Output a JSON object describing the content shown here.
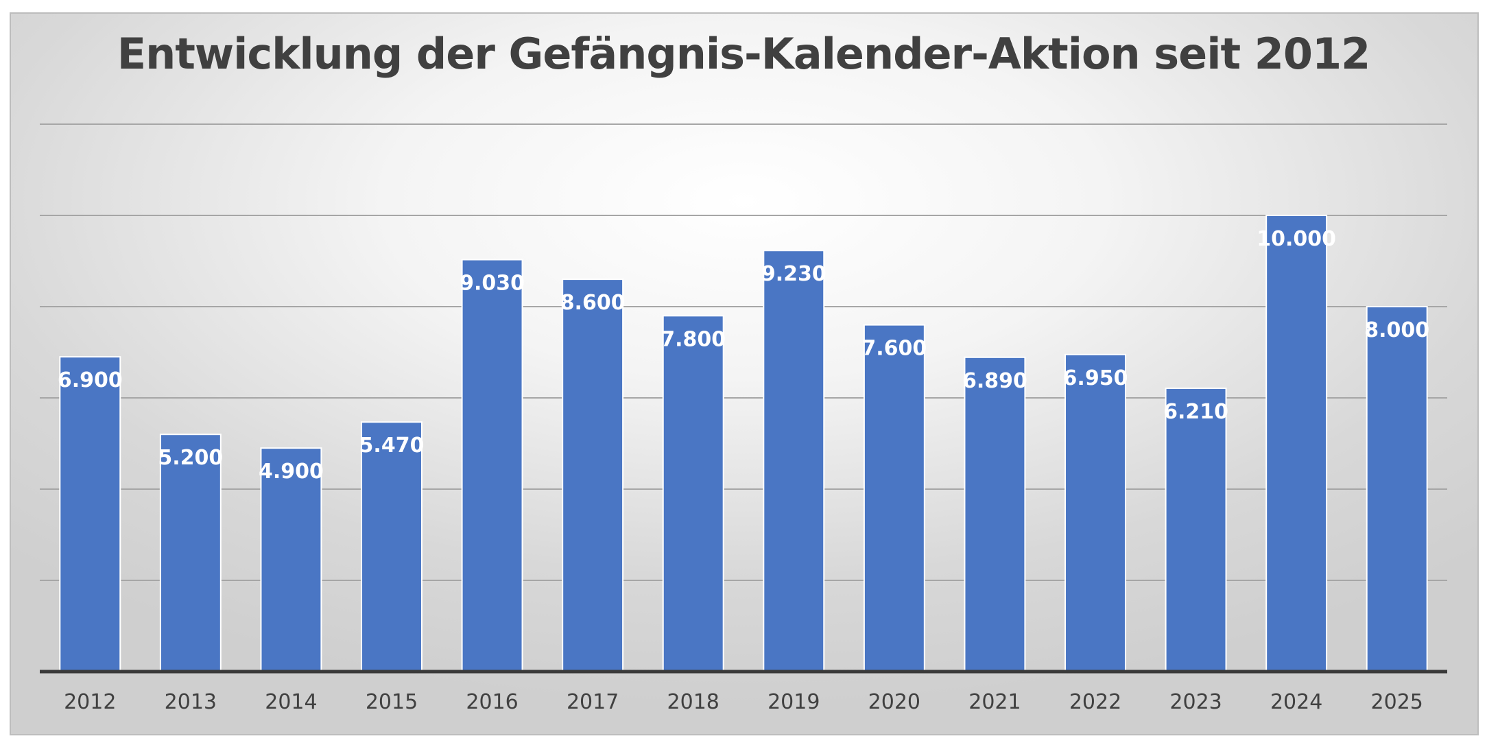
{
  "chart_data": {
    "type": "bar",
    "title": "Entwicklung der Gefängnis-Kalender-Aktion seit 2012",
    "categories": [
      "2012",
      "2013",
      "2014",
      "2015",
      "2016",
      "2017",
      "2018",
      "2019",
      "2020",
      "2021",
      "2022",
      "2023",
      "2024",
      "2025"
    ],
    "values": [
      6900,
      5200,
      4900,
      5470,
      9030,
      8600,
      7800,
      9230,
      7600,
      6890,
      6950,
      6210,
      10000,
      8000
    ],
    "value_labels": [
      "6.900",
      "5.200",
      "4.900",
      "5.470",
      "9.030",
      "8.600",
      "7.800",
      "9.230",
      "7.600",
      "6.890",
      "6.950",
      "6.210",
      "10.000",
      "8.000"
    ],
    "xlabel": "",
    "ylabel": "",
    "ylim": [
      0,
      12000
    ],
    "grid": true,
    "legend": "none",
    "bar_color": "#4a76c4"
  }
}
